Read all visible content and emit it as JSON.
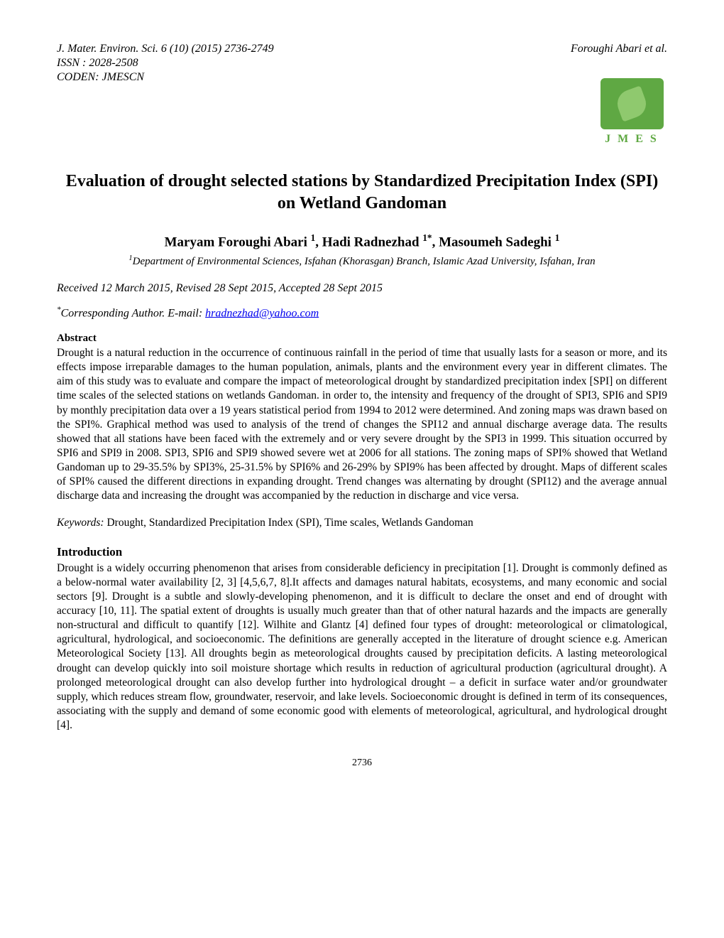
{
  "header": {
    "journal_info": "J. Mater. Environ. Sci. 6 (10) (2015) 2736-2749",
    "authors_short": "Foroughi Abari et al.",
    "issn": "ISSN : 2028-2508",
    "coden": "CODEN: JMESCN"
  },
  "logo": {
    "text": "J M E S",
    "bg_color": "#5fa843",
    "leaf_color": "#8fc96e"
  },
  "title": "Evaluation of drought selected stations by Standardized Precipitation Index (SPI) on Wetland Gandoman",
  "authors": {
    "a1_name": "Maryam Foroughi Abari ",
    "a1_sup": "1",
    "sep1": ", ",
    "a2_name": "Hadi Radnezhad ",
    "a2_sup": "1*",
    "sep2": ", ",
    "a3_name": "Masoumeh Sadeghi ",
    "a3_sup": "1"
  },
  "affiliation": {
    "sup": "1",
    "text": "Department of Environmental Sciences, Isfahan (Khorasgan) Branch, Islamic Azad University, Isfahan, Iran"
  },
  "dates": "Received 12 March 2015, Revised 28 Sept 2015, Accepted 28 Sept 2015",
  "corresponding": {
    "sup": "*",
    "label": "Corresponding Author. E-mail: ",
    "email": "hradnezhad@yahoo.com"
  },
  "abstract": {
    "heading": "Abstract",
    "text": "Drought is a natural reduction in the occurrence of continuous rainfall in the period of time that usually lasts for a season or more, and its effects impose irreparable damages to the human population, animals, plants and the environment every year in different climates. The aim of this study was to evaluate and compare the impact of meteorological drought by standardized precipitation index [SPI] on different time scales of the selected stations on wetlands Gandoman. in order to, the intensity and frequency of the drought of SPI3, SPI6 and SPI9 by monthly precipitation data over a 19 years statistical period from 1994 to 2012 were determined. And zoning maps was drawn based on the SPI%. Graphical method was used to analysis of the trend of changes the SPI12 and annual discharge average data. The results showed that all stations have been faced with the extremely and or very severe drought by the SPI3 in 1999. This situation occurred by SPI6 and SPI9 in 2008. SPI3, SPI6 and SPI9 showed severe wet at 2006 for all stations. The zoning maps of SPI% showed that Wetland Gandoman up to 29-35.5% by SPI3%, 25-31.5% by SPI6% and 26-29% by SPI9% has been affected by drought.  Maps of different scales of SPI% caused the different directions in expanding drought. Trend changes was alternating by drought (SPI12) and the average annual discharge data and increasing the drought was accompanied by the reduction in discharge and vice versa."
  },
  "keywords": {
    "label": "Keywords: ",
    "text": "Drought, Standardized Precipitation Index (SPI), Time scales, Wetlands Gandoman"
  },
  "introduction": {
    "heading": "Introduction",
    "text": "Drought is a widely occurring phenomenon that arises from considerable deficiency in precipitation [1]. Drought is commonly defined as a below-normal water availability [2, 3] [4,5,6,7, 8].It affects and damages natural habitats, ecosystems, and many economic and social sectors [9]. Drought is a subtle and slowly-developing phenomenon, and it is difficult to declare the onset and end of drought with accuracy [10, 11]. The spatial extent of droughts is usually much greater than that of other natural hazards and the impacts are generally non-structural and difficult to quantify [12]. Wilhite and Glantz [4] defined four types of drought: meteorological or climatological, agricultural, hydrological, and socioeconomic. The definitions are generally accepted in the literature of drought science e.g. American Meteorological Society [13]. All droughts begin as meteorological droughts caused by precipitation deficits. A lasting meteorological drought can develop quickly into soil moisture shortage which results in reduction of agricultural production (agricultural drought). A prolonged meteorological drought can also develop further into hydrological drought – a deficit in surface water and/or groundwater supply, which reduces stream flow, groundwater, reservoir, and lake levels. Socioeconomic drought is defined in term of its consequences, associating with the supply and demand of some economic good with elements of meteorological, agricultural, and hydrological drought [4]."
  },
  "page_number": "2736",
  "colors": {
    "text": "#000000",
    "background": "#ffffff",
    "link": "#0000ee"
  },
  "typography": {
    "body_font": "Times New Roman",
    "title_size_pt": 18,
    "author_size_pt": 14,
    "body_size_pt": 12
  }
}
